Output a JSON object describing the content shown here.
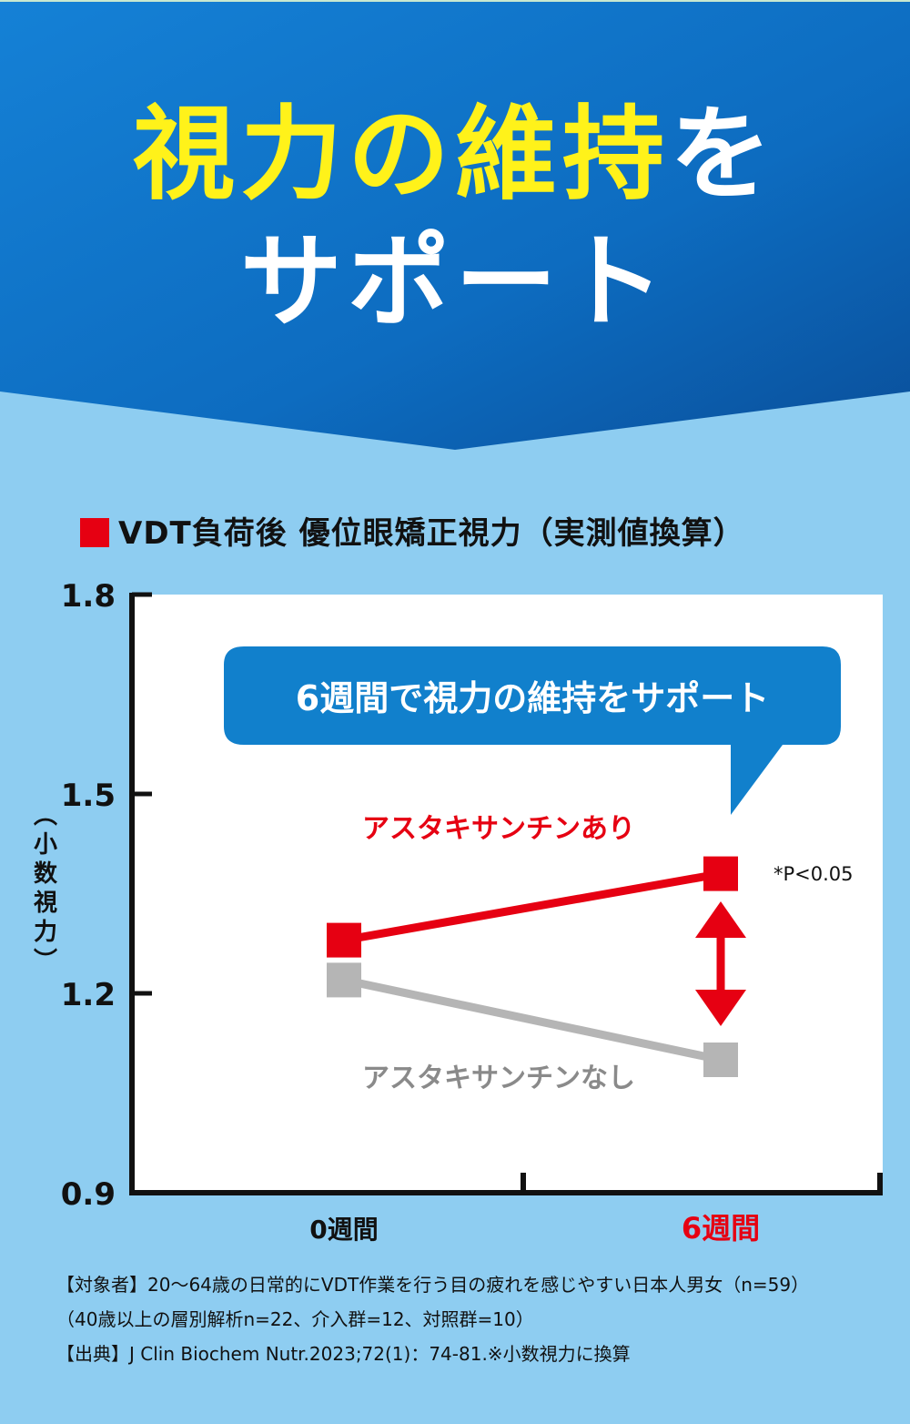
{
  "headline": {
    "line1_yellow": "視力の維持",
    "line1_white": "を",
    "line2": "サポート"
  },
  "colors": {
    "header_top": "#0e75c9",
    "header_bottom": "#0b5aa8",
    "background": "#8ecdf1",
    "accent_red": "#e60012",
    "control_gray": "#b5b5b5",
    "headline_yellow": "#fff21a",
    "callout_blue": "#1180cc"
  },
  "chart_title": "VDT負荷後 優位眼矯正視力（実測値換算）",
  "callout": "6週間で視力の維持をサポート",
  "chart_data": {
    "type": "line",
    "title": "VDT負荷後 優位眼矯正視力（実測値換算）",
    "ylabel": "（小数視力）",
    "ylim": [
      0.9,
      1.8
    ],
    "yticks": [
      0.9,
      1.2,
      1.5,
      1.8
    ],
    "ytick_labels": [
      "0.9",
      "1.2",
      "1.5",
      "1.8"
    ],
    "categories": [
      "0週間",
      "6週間"
    ],
    "xtick_colors": [
      "#111111",
      "#e60012"
    ],
    "series": [
      {
        "name": "アスタキサンチンあり",
        "values": [
          1.28,
          1.38
        ],
        "color": "#e60012"
      },
      {
        "name": "アスタキサンチンなし",
        "values": [
          1.22,
          1.1
        ],
        "color": "#b5b5b5"
      }
    ],
    "annotation": "*P<0.05",
    "grid": false
  },
  "footnotes": [
    "【対象者】20～64歳の日常的にVDT作業を行う目の疲れを感じやすい日本人男女（n=59）",
    "（40歳以上の層別解析n=22、介入群=12、対照群=10）",
    "【出典】J Clin Biochem Nutr.2023;72(1)：74-81.※小数視力に換算"
  ]
}
